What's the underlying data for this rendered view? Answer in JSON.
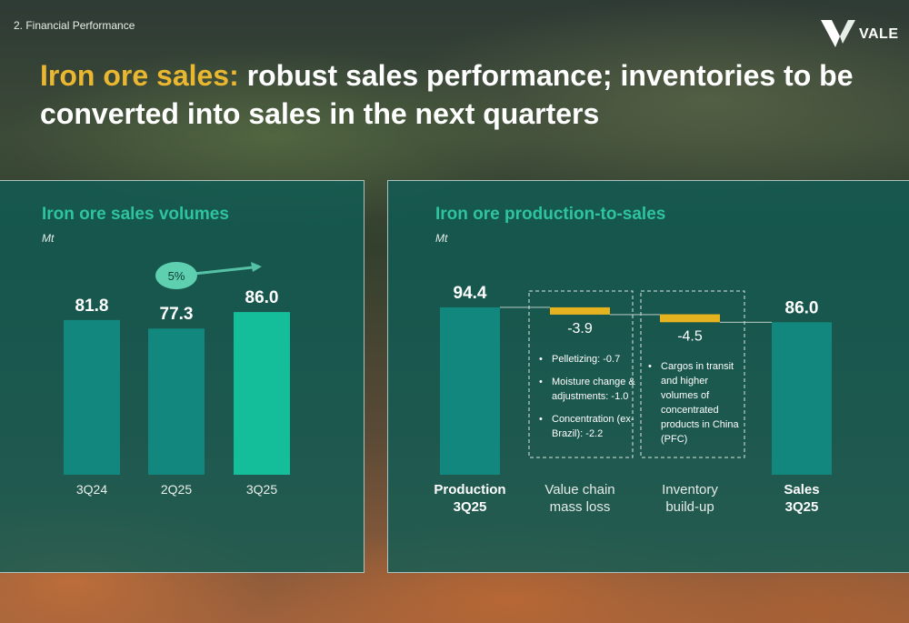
{
  "header": {
    "section": "2. Financial Performance",
    "title_accent": "Iron ore sales:",
    "title_rest": " robust sales performance; inventories to be converted into sales in the next quarters",
    "logo_text": "VALE"
  },
  "chart_data": [
    {
      "type": "bar",
      "title": "Iron ore sales volumes",
      "unit": "Mt",
      "categories": [
        "3Q24",
        "2Q25",
        "3Q25"
      ],
      "values": [
        81.8,
        77.3,
        86.0
      ],
      "value_labels": [
        "81.8",
        "77.3",
        "86.0"
      ],
      "ylim": [
        0,
        100
      ],
      "grid": false,
      "colors": [
        "#11877d",
        "#11877d",
        "#14be9b"
      ],
      "annotation": {
        "label": "5%"
      }
    },
    {
      "type": "waterfall",
      "title": "Iron ore production-to-sales",
      "unit": "Mt",
      "categories": [
        "Production 3Q25",
        "Value chain mass loss",
        "Inventory build-up",
        "Sales 3Q25"
      ],
      "tick_labels": [
        [
          "Production",
          "3Q25"
        ],
        [
          "Value chain",
          "mass loss"
        ],
        [
          "Inventory",
          "build-up"
        ],
        [
          "Sales",
          "3Q25"
        ]
      ],
      "steps": [
        {
          "type": "total",
          "value": 94.4,
          "label": "94.4"
        },
        {
          "type": "delta",
          "value": -3.9,
          "label": "-3.9"
        },
        {
          "type": "delta",
          "value": -4.5,
          "label": "-4.5"
        },
        {
          "type": "total",
          "value": 86.0,
          "label": "86.0"
        }
      ],
      "ylim": [
        0,
        100
      ],
      "grid": false,
      "colors": {
        "total": "#11877d",
        "delta": "#e6b320"
      },
      "notes": {
        "value_chain": [
          "Pelletizing: -0.7",
          "Moisture change & adjustments: -1.0",
          "Concentration (ex-Brazil): -2.2"
        ],
        "inventory": [
          "Cargos in transit and higher volumes of concentrated products in China (PFC)"
        ]
      }
    }
  ]
}
